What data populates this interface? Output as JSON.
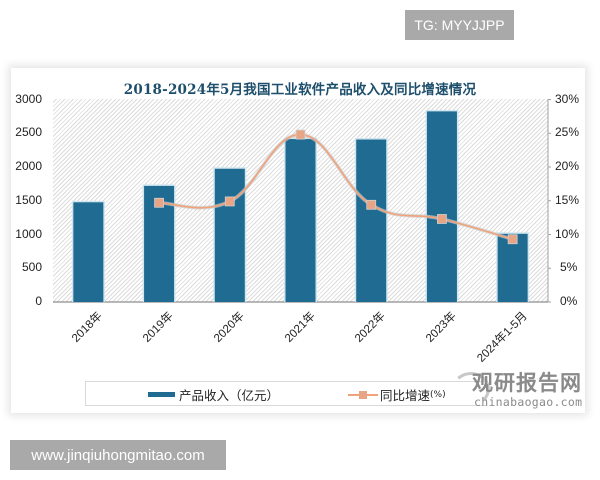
{
  "overlay": {
    "tg_badge": "TG: MYYJJPP",
    "site_badge": "www.jinqiuhongmitao.com"
  },
  "watermark": {
    "logo_text": "观研报告网",
    "url_text": "chinabaogao.com"
  },
  "legend": {
    "bar_label": "产品收入（亿元）",
    "line_label": "同比增速",
    "line_unit": "(%)"
  },
  "colors": {
    "bar": "#1f6b91",
    "line": "#f0a27a",
    "marker": "#e8a585",
    "title": "#1d4e6b"
  },
  "chart_data": {
    "type": "bar+line",
    "title": "2018-2024年5月我国工业软件产品收入及同比增速情况",
    "categories": [
      "2018年",
      "2019年",
      "2020年",
      "2021年",
      "2022年",
      "2023年",
      "2024年1-5月"
    ],
    "series": [
      {
        "name": "产品收入（亿元）",
        "type": "bar",
        "axis": "left",
        "values": [
          1477,
          1720,
          1974,
          2414,
          2407,
          2824,
          1010
        ]
      },
      {
        "name": "同比增速(%)",
        "type": "line",
        "axis": "right",
        "values": [
          null,
          14.7,
          14.9,
          24.8,
          14.4,
          12.3,
          9.3
        ]
      }
    ],
    "left_axis": {
      "ylim": [
        0,
        3000
      ],
      "ticks": [
        "0",
        "500",
        "1000",
        "1500",
        "2000",
        "2500",
        "3000"
      ]
    },
    "right_axis": {
      "ylim": [
        0,
        30
      ],
      "ticks": [
        "0%",
        "5%",
        "10%",
        "15%",
        "20%",
        "25%",
        "30%"
      ]
    },
    "xlabel": "",
    "ylabel": "",
    "grid": false,
    "legend_position": "bottom"
  }
}
